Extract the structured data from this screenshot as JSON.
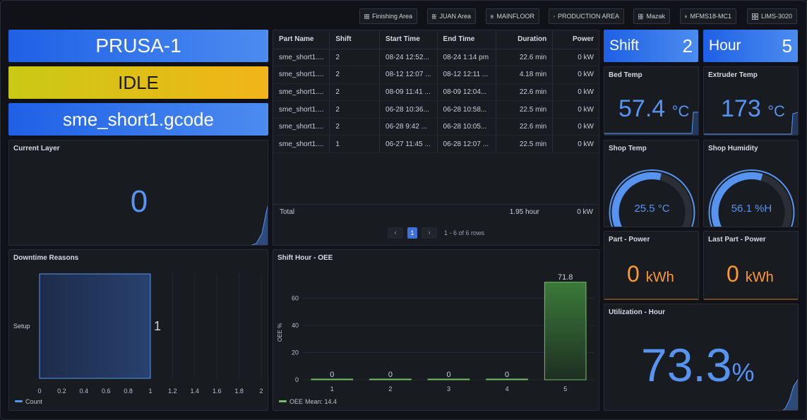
{
  "nav": [
    {
      "label": "Finishing Area"
    },
    {
      "label": "JUAN Area"
    },
    {
      "label": "MAINFLOOR"
    },
    {
      "label": "PRODUCTION AREA"
    },
    {
      "label": "Mazak"
    },
    {
      "label": "MFMS18-MC1"
    },
    {
      "label": "LIMS-3020"
    }
  ],
  "machine": {
    "name": "PRUSA-1",
    "status": "IDLE",
    "file": "sme_short1.gcode"
  },
  "current_layer": {
    "title": "Current Layer",
    "value": "0"
  },
  "parts_table": {
    "headers": [
      "Part Name",
      "Shift",
      "Start Time",
      "End Time",
      "Duration",
      "Power"
    ],
    "rows": [
      [
        "sme_short1....",
        "2",
        "08-24 12:52...",
        "08-24 1:14 pm",
        "22.6 min",
        "0 kW"
      ],
      [
        "sme_short1....",
        "2",
        "08-12 12:07 ...",
        "08-12 12:11 ...",
        "4.18 min",
        "0 kW"
      ],
      [
        "sme_short1....",
        "2",
        "08-09 11:41 ...",
        "08-09 12:04...",
        "22.6 min",
        "0 kW"
      ],
      [
        "sme_short1....",
        "2",
        "06-28 10:36...",
        "06-28 10:58...",
        "22.5 min",
        "0 kW"
      ],
      [
        "sme_short1....",
        "2",
        "06-28 9:42 ...",
        "06-28 10:05...",
        "22.6 min",
        "0 kW"
      ],
      [
        "sme_short1....",
        "1",
        "06-27 11:45 ...",
        "06-28 12:07 ...",
        "22.5 min",
        "0 kW"
      ]
    ],
    "total_label": "Total",
    "total_duration": "1.95 hour",
    "total_power": "0 kW",
    "pagination": {
      "prev": "‹",
      "page": "1",
      "next": "›",
      "summary": "1 - 6 of 6 rows"
    }
  },
  "shift": {
    "label": "Shift",
    "value": "2"
  },
  "hour": {
    "label": "Hour",
    "value": "5"
  },
  "bed_temp": {
    "title": "Bed Temp",
    "value": "57.4",
    "unit": "°C"
  },
  "extruder_temp": {
    "title": "Extruder Temp",
    "value": "173",
    "unit": "°C"
  },
  "shop_temp": {
    "title": "Shop Temp",
    "value": "25.5 °C",
    "fraction": 0.55
  },
  "shop_humidity": {
    "title": "Shop Humidity",
    "value": "56.1 %H",
    "fraction": 0.56
  },
  "part_power": {
    "title": "Part - Power",
    "value": "0",
    "unit": "kWh"
  },
  "last_part_power": {
    "title": "Last Part - Power",
    "value": "0",
    "unit": "kWh"
  },
  "utilization": {
    "title": "Utilization - Hour",
    "value": "73.3",
    "unit": "%"
  },
  "colors": {
    "blue": "#5794f2",
    "orange": "#ff9830",
    "green": "#73bf69",
    "banner_blue": "#3274d9",
    "idle_yellow": "#e0b400"
  },
  "chart_data": [
    {
      "type": "bar",
      "title": "Downtime Reasons",
      "orientation": "horizontal",
      "categories": [
        "Setup"
      ],
      "values": [
        1
      ],
      "xlim": [
        0,
        2
      ],
      "xticks": [
        "0",
        "0.2",
        "0.4",
        "0.6",
        "0.8",
        "1",
        "1.2",
        "1.4",
        "1.6",
        "1.8",
        "2"
      ],
      "legend": {
        "label": "Count",
        "position": "bottom-left"
      }
    },
    {
      "type": "bar",
      "title": "Shift Hour - OEE",
      "categories": [
        "1",
        "2",
        "3",
        "4",
        "5"
      ],
      "values": [
        0,
        0,
        0,
        0,
        71.8
      ],
      "ylabel": "OEE %",
      "ylim": [
        0,
        80
      ],
      "yticks": [
        "0",
        "20",
        "40",
        "60"
      ],
      "legend": {
        "label": "OEE",
        "stat": "Mean: 14.4",
        "position": "bottom-left"
      }
    }
  ]
}
